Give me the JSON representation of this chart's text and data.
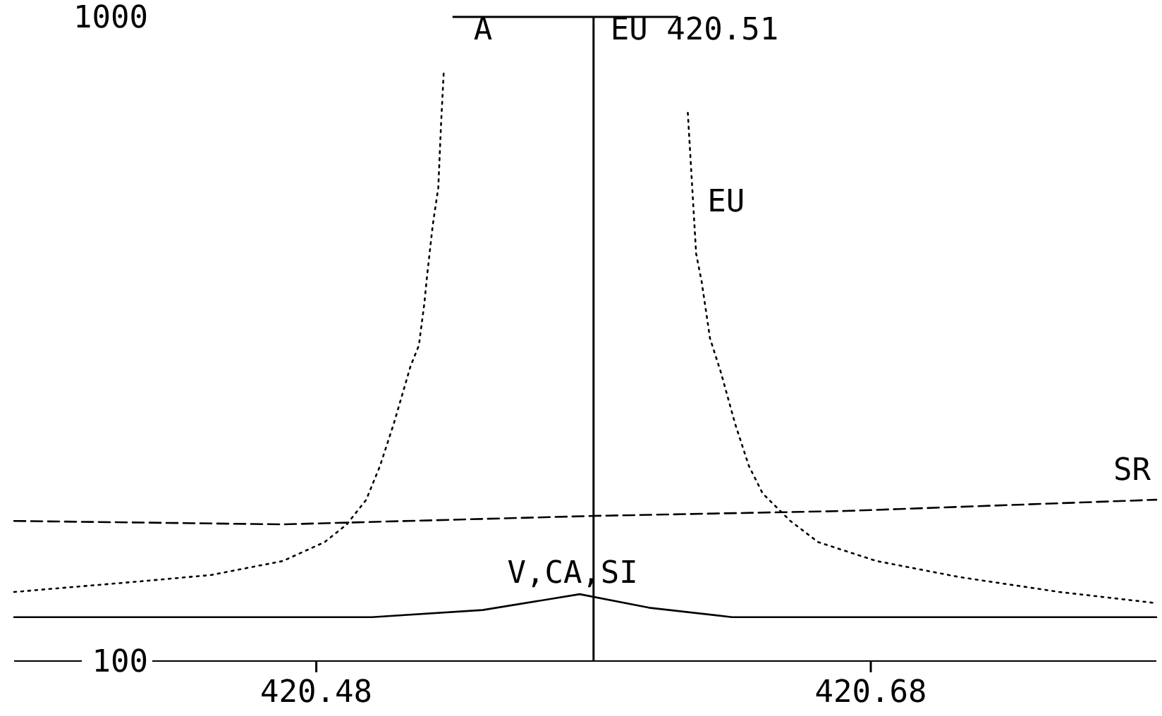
{
  "chart_data": {
    "type": "line",
    "log": "y",
    "xlim": [
      420.371,
      420.783
    ],
    "ylim": [
      100,
      1000
    ],
    "xticks": [
      420.48,
      420.68
    ],
    "yticks": [
      100,
      1000
    ],
    "grid": false,
    "legend": false,
    "marker": "none",
    "annotations": [
      "A"
    ],
    "ref_lines": [
      {
        "axis": "x",
        "value": 420.58,
        "label": "EU 420.51",
        "color": "#000000"
      }
    ],
    "series": [
      {
        "name": "EU",
        "color": "#000000",
        "line_style": "dotted",
        "x": [
          420.371,
          420.417,
          420.442,
          420.468,
          420.483,
          420.491,
          420.498,
          420.503,
          420.508,
          420.514,
          420.517,
          420.519,
          420.52,
          420.522,
          420.524,
          420.525,
          420.526,
          420.58,
          420.614,
          420.617,
          420.619,
          420.622,
          420.626,
          420.631,
          420.636,
          420.641,
          420.651,
          420.661,
          420.682,
          420.712,
          420.748,
          420.783
        ],
        "values": [
          128,
          133,
          136,
          143,
          153,
          163,
          178,
          201,
          234,
          287,
          309,
          360,
          398,
          475,
          543,
          682,
          826,
          null,
          710,
          429,
          388,
          317,
          280,
          234,
          201,
          182,
          165,
          153,
          143,
          135,
          128,
          123
        ]
      },
      {
        "name": "SR",
        "color": "#000000",
        "line_style": "dashed",
        "x": [
          420.371,
          420.468,
          420.58,
          420.671,
          420.783
        ],
        "values": [
          165,
          163,
          168,
          171,
          178
        ]
      },
      {
        "name": "V,CA,SI",
        "color": "#000000",
        "line_style": "solid",
        "x": [
          420.371,
          420.5,
          420.54,
          420.575,
          420.6,
          420.63,
          420.783
        ],
        "values": [
          117,
          117,
          120,
          127,
          121,
          117,
          117
        ]
      }
    ]
  }
}
